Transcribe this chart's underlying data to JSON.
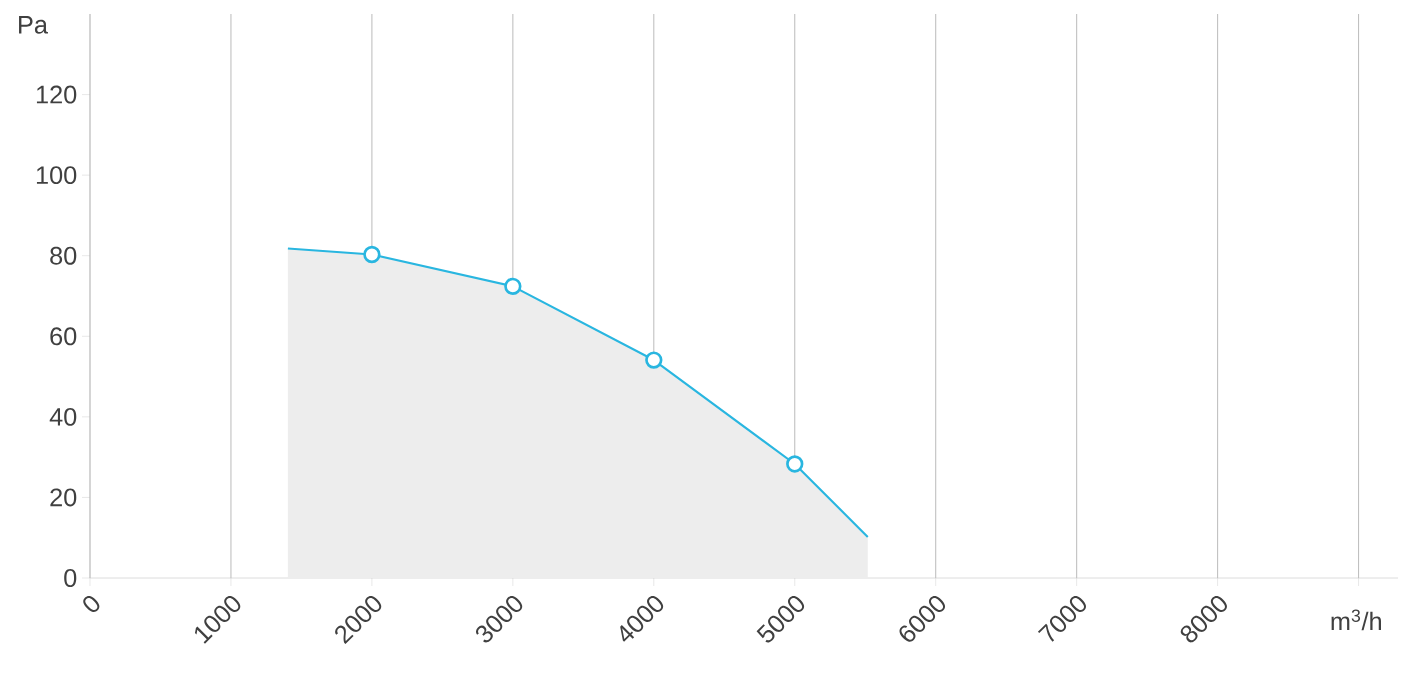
{
  "chart_data": {
    "type": "area",
    "xlabel": "m$^{3}$/h",
    "ylabel": "Pa",
    "xlim": [
      0,
      9280
    ],
    "ylim": [
      0,
      140
    ],
    "xticks": [
      0,
      1000,
      2000,
      3000,
      4000,
      5000,
      6000,
      7000,
      8000,
      {
        "value": 9000,
        "label": null
      }
    ],
    "yticks": [
      0,
      20,
      40,
      60,
      80,
      100,
      120
    ],
    "grid": "x",
    "series": [
      {
        "color": "#29b6e0",
        "x": [
          1404,
          2000,
          3000,
          4000,
          5000,
          5518
        ],
        "values": [
          81.8,
          80.3,
          72.4,
          54.1,
          28.3,
          10.2
        ]
      },
      {
        "type": "scatter",
        "color": "#29b6e0",
        "marker": "circle",
        "x": [
          2000,
          3000,
          4000,
          5000
        ],
        "values": [
          80.3,
          72.4,
          54.1,
          28.3
        ]
      }
    ]
  }
}
